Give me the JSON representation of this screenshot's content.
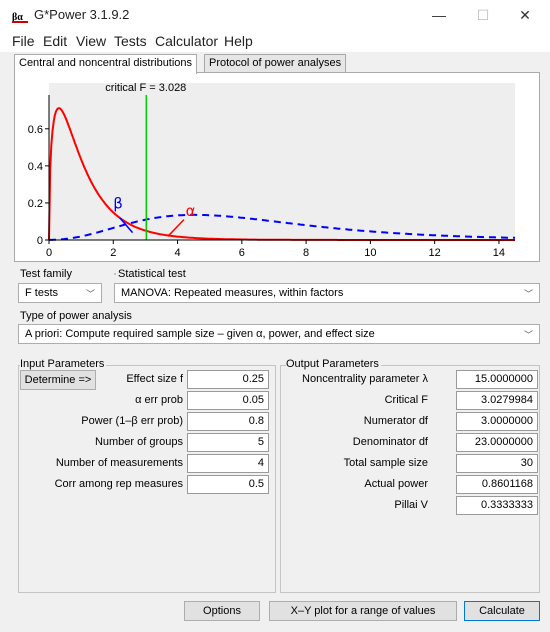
{
  "window": {
    "title": "G*Power 3.1.9.2",
    "minimize": "—",
    "maximize": "☐",
    "close": "✕"
  },
  "menu": [
    "File",
    "Edit",
    "View",
    "Tests",
    "Calculator",
    "Help"
  ],
  "tabs": [
    "Central and noncentral distributions",
    "Protocol of power analyses"
  ],
  "chart_data": {
    "type": "line",
    "annotation": "critical F = 3.028",
    "critical_x": 3.028,
    "xlim": [
      0,
      14.5
    ],
    "ylim": [
      0,
      0.75
    ],
    "x_ticks": [
      "0",
      "2",
      "4",
      "6",
      "8",
      "10",
      "12",
      "14"
    ],
    "y_ticks": [
      "0",
      "0.2",
      "0.4",
      "0.6"
    ],
    "greek_beta": "β",
    "greek_alpha": "α",
    "series": [
      {
        "style": "solid",
        "color": "#ff0000",
        "df1": 3,
        "df2": 23,
        "lambda": 0
      },
      {
        "style": "dashed",
        "color": "#0000ff",
        "df1": 3,
        "df2": 23,
        "lambda": 15
      }
    ]
  },
  "test_family": {
    "label": "Test family",
    "value": "F tests"
  },
  "statistical_test": {
    "label": "Statistical test",
    "value": "MANOVA: Repeated measures, within factors"
  },
  "analysis_type": {
    "label": "Type of power analysis",
    "value": "A priori: Compute required sample size – given α, power, and effect size"
  },
  "input": {
    "title": "Input Parameters",
    "determine": "Determine =>",
    "params": [
      {
        "label": "Effect size f",
        "value": "0.25"
      },
      {
        "label": "α err prob",
        "value": "0.05"
      },
      {
        "label": "Power (1–β err prob)",
        "value": "0.8"
      },
      {
        "label": "Number of groups",
        "value": "5"
      },
      {
        "label": "Number of measurements",
        "value": "4"
      },
      {
        "label": "Corr among rep measures",
        "value": "0.5"
      }
    ]
  },
  "output": {
    "title": "Output Parameters",
    "params": [
      {
        "label": "Noncentrality parameter λ",
        "value": "15.0000000"
      },
      {
        "label": "Critical F",
        "value": "3.0279984"
      },
      {
        "label": "Numerator df",
        "value": "3.0000000"
      },
      {
        "label": "Denominator df",
        "value": "23.0000000"
      },
      {
        "label": "Total sample size",
        "value": "30"
      },
      {
        "label": "Actual power",
        "value": "0.8601168"
      },
      {
        "label": "Pillai V",
        "value": "0.3333333"
      }
    ]
  },
  "buttons": {
    "options": "Options",
    "xy_plot": "X–Y plot for a range of values",
    "calculate": "Calculate"
  }
}
